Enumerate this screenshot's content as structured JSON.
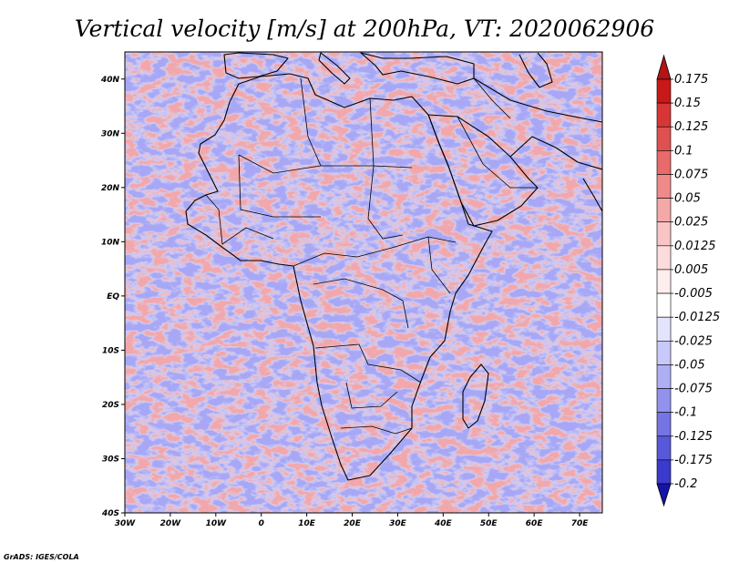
{
  "title": "Vertical velocity [m/s] at 200hPa, VT: 2020062906",
  "credit": "GrADS: IGES/COLA",
  "map": {
    "lon_range": [
      -30,
      75
    ],
    "lat_range": [
      -40,
      45
    ],
    "lat_ticks": [
      {
        "value": 40,
        "label": "40N"
      },
      {
        "value": 30,
        "label": "30N"
      },
      {
        "value": 20,
        "label": "20N"
      },
      {
        "value": 10,
        "label": "10N"
      },
      {
        "value": 0,
        "label": "EQ"
      },
      {
        "value": -10,
        "label": "10S"
      },
      {
        "value": -20,
        "label": "20S"
      },
      {
        "value": -30,
        "label": "30S"
      },
      {
        "value": -40,
        "label": "40S"
      }
    ],
    "lon_ticks": [
      {
        "value": -30,
        "label": "30W"
      },
      {
        "value": -20,
        "label": "20W"
      },
      {
        "value": -10,
        "label": "10W"
      },
      {
        "value": 0,
        "label": "0"
      },
      {
        "value": 10,
        "label": "10E"
      },
      {
        "value": 20,
        "label": "20E"
      },
      {
        "value": 30,
        "label": "30E"
      },
      {
        "value": 40,
        "label": "40E"
      },
      {
        "value": 50,
        "label": "50E"
      },
      {
        "value": 60,
        "label": "60E"
      },
      {
        "value": 70,
        "label": "70E"
      }
    ]
  },
  "colorbar": {
    "levels": [
      {
        "label": "0.175",
        "color": "#c81818"
      },
      {
        "label": "0.15",
        "color": "#d83636"
      },
      {
        "label": "0.125",
        "color": "#e05050"
      },
      {
        "label": "0.1",
        "color": "#e86a6a"
      },
      {
        "label": "0.075",
        "color": "#f08a8a"
      },
      {
        "label": "0.05",
        "color": "#f4a8a8"
      },
      {
        "label": "0.025",
        "color": "#f8c4c4"
      },
      {
        "label": "0.0125",
        "color": "#fcdcdc"
      },
      {
        "label": "0.005",
        "color": "#ffeeee"
      },
      {
        "label": "-0.005",
        "color": "#ffffff"
      },
      {
        "label": "-0.0125",
        "color": "#e4e4ff"
      },
      {
        "label": "-0.025",
        "color": "#c8c8fa"
      },
      {
        "label": "-0.05",
        "color": "#aeaef4"
      },
      {
        "label": "-0.075",
        "color": "#9292ee"
      },
      {
        "label": "-0.1",
        "color": "#7474e4"
      },
      {
        "label": "-0.125",
        "color": "#5858da"
      },
      {
        "label": "-0.175",
        "color": "#3a3ace"
      },
      {
        "label": "-0.2",
        "color": "#2222c0"
      }
    ],
    "top_color": "#b41414",
    "bottom_color": "#1414a8"
  }
}
